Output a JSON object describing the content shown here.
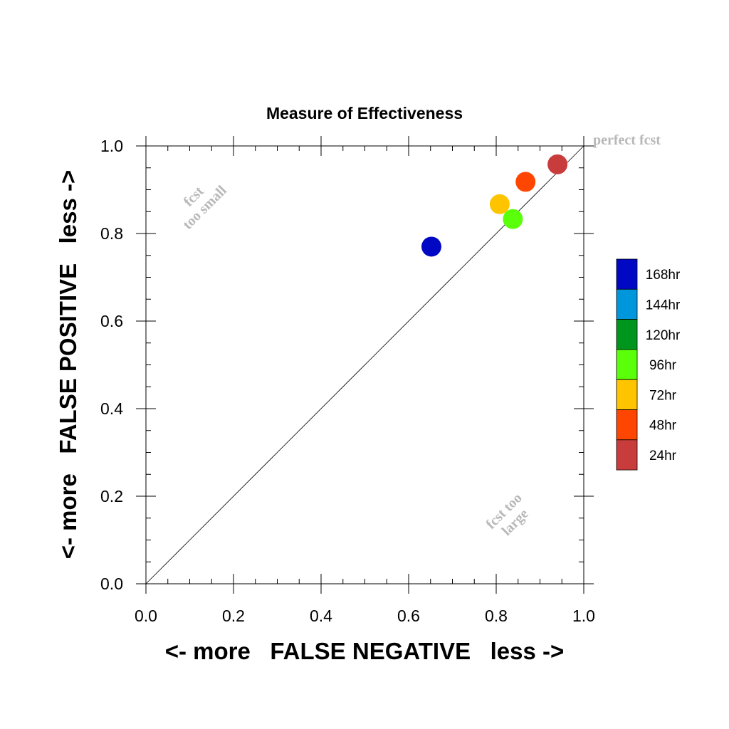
{
  "chart_data": {
    "type": "scatter",
    "title": "Measure of Effectiveness",
    "xlabel": "<- more   FALSE NEGATIVE   less ->",
    "ylabel": "<- more   FALSE POSITIVE   less ->",
    "xlim": [
      0,
      1
    ],
    "ylim": [
      0,
      1
    ],
    "x_ticks": [
      "0.0",
      "0.2",
      "0.4",
      "0.6",
      "0.8",
      "1.0"
    ],
    "y_ticks": [
      "0.0",
      "0.2",
      "0.4",
      "0.6",
      "0.8",
      "1.0"
    ],
    "grid": false,
    "diagonal_reference_line": true,
    "legend_position": "right",
    "series": [
      {
        "name": "168hr",
        "color": "#0008c4",
        "x": 0.652,
        "y": 0.77
      },
      {
        "name": "144hr",
        "color": "#0096dc",
        "x": null,
        "y": null
      },
      {
        "name": "120hr",
        "color": "#00961e",
        "x": null,
        "y": null
      },
      {
        "name": "96hr",
        "color": "#5aff0a",
        "x": 0.838,
        "y": 0.833
      },
      {
        "name": "72hr",
        "color": "#ffc400",
        "x": 0.808,
        "y": 0.867
      },
      {
        "name": "48hr",
        "color": "#ff4600",
        "x": 0.867,
        "y": 0.918
      },
      {
        "name": "24hr",
        "color": "#c83c3c",
        "x": 0.94,
        "y": 0.958
      }
    ],
    "annotations": {
      "perfect": "perfect fcst",
      "small_line1": "fcst",
      "small_line2": "too small",
      "large_line1": "fcst too",
      "large_line2": "large"
    }
  }
}
